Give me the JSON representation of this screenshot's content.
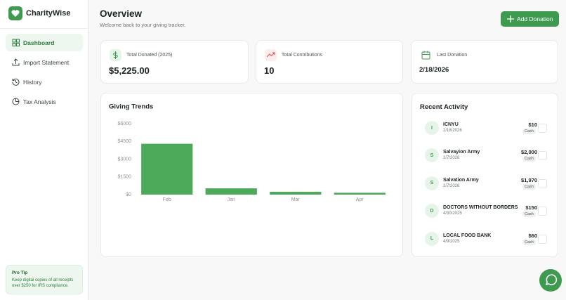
{
  "sidebar": {
    "brand": "CharityWise",
    "nav": [
      "Dashboard",
      "Import Statement",
      "History",
      "Tax Analysis"
    ],
    "tip": {
      "title": "Pro Tip",
      "text": "Keep digital copies of all receipts over $250 for IRS compliance."
    }
  },
  "header": {
    "title": "Overview",
    "subtitle": "Welcome back to your giving tracker.",
    "button": "Add Donation"
  },
  "stats": [
    {
      "label": "Total Donated (2025)",
      "value": "$5,225.00"
    },
    {
      "label": "Total Contributions",
      "value": "10"
    },
    {
      "label": "Last Donation",
      "value": "2/18/2026"
    }
  ],
  "chart_data": {
    "type": "bar",
    "title": "Giving Trends",
    "categories": [
      "Feb",
      "Jan",
      "Mar",
      "Apr"
    ],
    "values": [
      4300,
      530,
      240,
      155
    ],
    "color": "#4ca95a",
    "ylim": [
      0,
      6000
    ],
    "yticks": [
      {
        "value": 0,
        "label": "$0"
      },
      {
        "value": 1500,
        "label": "$1500"
      },
      {
        "value": 3000,
        "label": "$3000"
      },
      {
        "value": 4500,
        "label": "$4500"
      },
      {
        "value": 6000,
        "label": "$6000"
      }
    ]
  },
  "activity": {
    "title": "Recent Activity",
    "items": [
      {
        "initial": "I",
        "name": "ICNYU",
        "date": "2/18/2026",
        "amount": "$10",
        "method": "Cash"
      },
      {
        "initial": "S",
        "name": "Salvayion Army",
        "date": "2/7/2026",
        "amount": "$2,000",
        "method": "Cash"
      },
      {
        "initial": "S",
        "name": "Salvation Army",
        "date": "2/7/2026",
        "amount": "$1,970",
        "method": "Cash"
      },
      {
        "initial": "D",
        "name": "DOCTORS WITHOUT BORDERS",
        "date": "4/30/2025",
        "amount": "$150",
        "method": "Cash"
      },
      {
        "initial": "L",
        "name": "LOCAL FOOD BANK",
        "date": "4/9/2025",
        "amount": "$60",
        "method": "Cash"
      }
    ]
  }
}
